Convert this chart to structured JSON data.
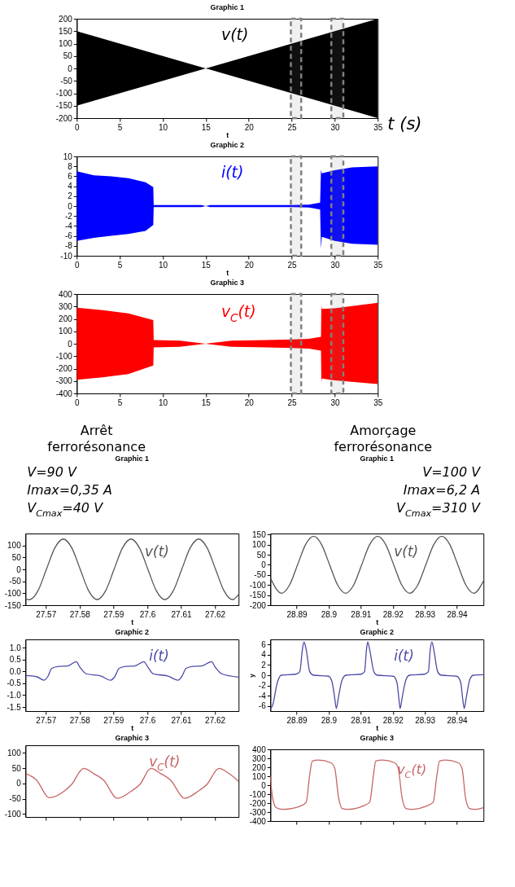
{
  "chart_data": [
    {
      "type": "line",
      "title": "Graphic 1",
      "xlabel": "t",
      "xlim": [
        0,
        35
      ],
      "xticks": [
        0,
        5,
        10,
        15,
        20,
        25,
        30,
        35
      ],
      "ylim": [
        -200,
        200
      ],
      "yticks": [
        -200,
        -150,
        -100,
        -50,
        0,
        50,
        100,
        150,
        200
      ],
      "series": [
        {
          "name": "v(t)",
          "color": "#000000",
          "x": [
            0,
            15,
            35
          ],
          "values": [
            null,
            null,
            null
          ],
          "lower": [
            -150,
            0,
            -200
          ],
          "upper": [
            150,
            0,
            200
          ]
        }
      ],
      "bands": [
        {
          "axis": "x",
          "from": 24.9,
          "to": 26.1,
          "color": "#808080"
        },
        {
          "axis": "x",
          "from": 29.6,
          "to": 31.0,
          "color": "#808080"
        }
      ],
      "annotations": [
        "t (s)"
      ]
    },
    {
      "type": "line",
      "title": "Graphic 2",
      "xlabel": "t",
      "xlim": [
        0,
        35
      ],
      "xticks": [
        0,
        5,
        10,
        15,
        20,
        25,
        30,
        35
      ],
      "ylim": [
        -10,
        10
      ],
      "yticks": [
        -10,
        -8,
        -6,
        -4,
        -2,
        0,
        2,
        4,
        6,
        8,
        10
      ],
      "series": [
        {
          "name": "i(t)",
          "color": "#0000ff",
          "x": [
            0,
            2,
            4,
            6,
            8,
            8.9,
            8.95,
            14.5,
            15,
            15.5,
            25,
            27,
            28.3,
            28.4,
            28.5,
            30,
            32,
            35
          ],
          "values": [
            null,
            null,
            null,
            null,
            null,
            null,
            null,
            null,
            null,
            null,
            null,
            null,
            null,
            null,
            null,
            null,
            null,
            null
          ],
          "upper": [
            7,
            6.2,
            6,
            5.6,
            4.8,
            3.8,
            0.2,
            0.2,
            0,
            0.2,
            0.2,
            0.3,
            0.7,
            7.3,
            6.6,
            7.2,
            7.8,
            8
          ],
          "lower": [
            -7,
            -6.4,
            -6,
            -5.6,
            -5,
            -3.8,
            -0.2,
            -0.2,
            0,
            -0.2,
            -0.2,
            -0.3,
            -0.7,
            -8.6,
            -6.2,
            -7,
            -7.6,
            -7.8
          ]
        }
      ],
      "bands": [
        {
          "axis": "x",
          "from": 24.9,
          "to": 26.1,
          "color": "#808080"
        },
        {
          "axis": "x",
          "from": 29.6,
          "to": 31.0,
          "color": "#808080"
        }
      ]
    },
    {
      "type": "line",
      "title": "Graphic 3",
      "xlim": [
        0,
        35
      ],
      "xticks": [
        0,
        5,
        10,
        15,
        20,
        25,
        30,
        35
      ],
      "ylim": [
        -400,
        400
      ],
      "yticks": [
        -400,
        -300,
        -200,
        -100,
        0,
        100,
        200,
        300,
        400
      ],
      "series": [
        {
          "name": "v$_{C}$(t)",
          "color": "#ff0000",
          "x": [
            0,
            3,
            6,
            8.9,
            8.95,
            12,
            15,
            18,
            22,
            25,
            27,
            28.4,
            28.45,
            28.5,
            30,
            35
          ],
          "values": [
            null,
            null,
            null,
            null,
            null,
            null,
            null,
            null,
            null,
            null,
            null,
            null,
            null,
            null,
            null,
            null
          ],
          "upper": [
            290,
            270,
            245,
            190,
            30,
            25,
            0,
            25,
            30,
            35,
            40,
            55,
            310,
            280,
            285,
            330
          ],
          "lower": [
            -290,
            -270,
            -245,
            -175,
            -30,
            -25,
            0,
            -25,
            -30,
            -35,
            -40,
            -55,
            -310,
            -280,
            -295,
            -325
          ]
        }
      ],
      "bands": [
        {
          "axis": "x",
          "from": 24.9,
          "to": 26.1,
          "color": "#808080"
        },
        {
          "axis": "x",
          "from": 29.6,
          "to": 31.0,
          "color": "#808080"
        }
      ],
      "annotations": [
        "Arrêt\nferrorésonance",
        "Amorçage\nferrorésonance"
      ]
    },
    {
      "type": "line",
      "title": "Graphic 1",
      "xlabel": "t",
      "xlim": [
        27.564,
        27.627
      ],
      "xticks": [
        27.57,
        27.58,
        27.59,
        27.6,
        27.61,
        27.62
      ],
      "ylim": [
        -150,
        150
      ],
      "yticks": [
        -150,
        -100,
        -50,
        0,
        50,
        100
      ],
      "series": [
        {
          "name": "v(t)",
          "color": "#555555",
          "x": [
            27.564,
            27.5652,
            27.5677,
            27.5702,
            27.5727,
            27.5752,
            27.5777,
            27.5802,
            27.5827,
            27.5852,
            27.5877,
            27.5902,
            27.5927,
            27.5952,
            27.5977,
            27.6002,
            27.6027,
            27.6052,
            27.6077,
            27.6102,
            27.6127,
            27.6152,
            27.6177,
            27.6202,
            27.6227,
            27.6252,
            27.627
          ],
          "values": [
            -124,
            -127,
            -90,
            0,
            90,
            127,
            90,
            0,
            -90,
            -127,
            -90,
            0,
            90,
            127,
            90,
            0,
            -90,
            -127,
            -90,
            0,
            90,
            127,
            90,
            0,
            -90,
            -127,
            -105
          ]
        }
      ],
      "annotations": [
        "V=90 V",
        "Imax=0,35 A",
        "V$_{Cmax}$=40 V"
      ]
    },
    {
      "type": "line",
      "title": "Graphic 1",
      "xlabel": "t",
      "xlim": [
        28.8818,
        28.9483
      ],
      "xticks": [
        28.89,
        28.9,
        28.91,
        28.92,
        28.93,
        28.94
      ],
      "ylim": [
        -200,
        155
      ],
      "yticks": [
        -200,
        -150,
        -100,
        -50,
        0,
        50,
        100,
        150
      ],
      "series": [
        {
          "name": "v(t)",
          "color": "#555555",
          "x": [
            28.8818,
            28.8853,
            28.8878,
            28.8903,
            28.8928,
            28.8953,
            28.8978,
            28.9003,
            28.9028,
            28.9053,
            28.9078,
            28.9103,
            28.9128,
            28.9153,
            28.9178,
            28.9203,
            28.9228,
            28.9253,
            28.9278,
            28.9303,
            28.9328,
            28.9353,
            28.9378,
            28.9403,
            28.9428,
            28.9453,
            28.9483
          ],
          "values": [
            -64,
            -141,
            -100,
            0,
            100,
            141,
            100,
            0,
            -100,
            -141,
            -100,
            0,
            100,
            141,
            100,
            0,
            -100,
            -141,
            -100,
            0,
            100,
            141,
            100,
            0,
            -100,
            -141,
            -80
          ]
        }
      ],
      "annotations": [
        "V=100 V",
        "Imax=6,2 A",
        "V$_{Cmax}$=310 V"
      ]
    },
    {
      "type": "line",
      "title": "Graphic 2",
      "xlabel": "t",
      "xlim": [
        27.564,
        27.627
      ],
      "xticks": [
        27.57,
        27.58,
        27.59,
        27.6,
        27.61,
        27.62
      ],
      "ylim": [
        -1.67,
        1.35
      ],
      "yticks": [
        {
          "value": -1.5,
          "label": "-1.5"
        },
        {
          "value": -1,
          "label": "-1.0"
        },
        {
          "value": -0.5,
          "label": "-0.5"
        },
        {
          "value": 0,
          "label": "0.0"
        },
        {
          "value": 0.5,
          "label": "0.5"
        },
        {
          "value": 1,
          "label": "1.0"
        }
      ],
      "series": [
        {
          "name": "i(t)",
          "color": "#4a4aa8",
          "x": [
            27.5642,
            27.5673,
            27.5695,
            27.5706,
            27.5718,
            27.5739,
            27.5765,
            27.579,
            27.5801,
            27.582,
            27.5864,
            27.5892,
            27.5904,
            27.5917,
            27.5937,
            27.5963,
            27.599,
            27.6002,
            27.6018,
            27.6062,
            27.6091,
            27.6102,
            27.6115,
            27.6135,
            27.6161,
            27.619,
            27.6201,
            27.622,
            27.627
          ],
          "values": [
            -0.17,
            -0.22,
            -0.37,
            -0.22,
            0.13,
            0.21,
            0.23,
            0.41,
            0.18,
            -0.1,
            -0.2,
            -0.37,
            -0.22,
            0.13,
            0.21,
            0.23,
            0.41,
            0.18,
            -0.1,
            -0.2,
            -0.37,
            -0.22,
            0.13,
            0.21,
            0.23,
            0.41,
            0.18,
            -0.1,
            -0.24
          ]
        }
      ]
    },
    {
      "type": "line",
      "title": "Graphic 2",
      "xlabel": "t",
      "ylabel": "y",
      "xlim": [
        28.8818,
        28.9483
      ],
      "xticks": [
        28.89,
        28.9,
        28.91,
        28.92,
        28.93,
        28.94
      ],
      "ylim": [
        -7,
        7
      ],
      "yticks": [
        -6,
        -4,
        -2,
        0,
        2,
        4,
        6
      ],
      "series": [
        {
          "name": "i(t)",
          "color": "#4a4aa8",
          "x": [
            28.8818,
            28.8825,
            28.884,
            28.8852,
            28.8898,
            28.891,
            28.8918,
            28.8923,
            28.893,
            28.8941,
            28.8953,
            28.9,
            28.9011,
            28.9019,
            28.9024,
            28.903,
            28.9042,
            28.9054,
            28.9101,
            28.9112,
            28.9118,
            28.9122,
            28.9128,
            28.9141,
            28.9151,
            28.9202,
            28.9213,
            28.9219,
            28.9223,
            28.9229,
            28.9241,
            28.9252,
            28.9299,
            28.9311,
            28.9317,
            28.9322,
            28.9328,
            28.934,
            28.9351,
            28.94,
            28.9412,
            28.9418,
            28.9423,
            28.9429,
            28.944,
            28.9451,
            28.9483
          ],
          "values": [
            -6.6,
            -5.9,
            -1.4,
            0,
            0.2,
            0.7,
            5,
            6.5,
            5,
            0.7,
            0,
            -0.2,
            -1.4,
            -4.5,
            -6.5,
            -4.5,
            -0.9,
            0,
            0.2,
            0.7,
            5,
            6.5,
            5,
            0.7,
            0,
            -0.2,
            -1.4,
            -4.5,
            -6.5,
            -4.5,
            -0.9,
            0,
            0.2,
            0.7,
            5,
            6.5,
            5,
            0.7,
            0,
            -0.2,
            -1.4,
            -4.5,
            -6.5,
            -4.5,
            -0.9,
            0,
            0.1
          ]
        }
      ]
    },
    {
      "type": "line",
      "title": "Graphic 3",
      "tick_labels": "y",
      "xlim": [
        27.564,
        27.627
      ],
      "xticks": [
        27.57,
        27.58,
        27.59,
        27.6,
        27.61,
        27.62
      ],
      "ylim": [
        -110,
        125
      ],
      "yticks": [
        -100,
        -50,
        0,
        50,
        100
      ],
      "series": [
        {
          "name": "v$_{C}$(t)",
          "color": "#c86464",
          "x": [
            27.5642,
            27.5673,
            27.571,
            27.5754,
            27.5776,
            27.5812,
            27.5842,
            27.5871,
            27.5911,
            27.5952,
            27.5978,
            27.6011,
            27.604,
            27.6069,
            27.611,
            27.615,
            27.6176,
            27.6212,
            27.6242,
            27.627
          ],
          "values": [
            32,
            11,
            -47,
            -26,
            -4,
            49,
            32,
            11,
            -49,
            -26,
            -4,
            49,
            32,
            11,
            -49,
            -26,
            -4,
            49,
            32,
            7
          ]
        }
      ]
    },
    {
      "type": "line",
      "title": "Graphic 3",
      "tick_labels": "y",
      "xlim": [
        28.8818,
        28.9483
      ],
      "xticks": [
        28.89,
        28.9,
        28.91,
        28.92,
        28.93,
        28.94
      ],
      "ylim": [
        -400,
        400
      ],
      "yticks": [
        -400,
        -300,
        -200,
        -100,
        0,
        100,
        200,
        300,
        400
      ],
      "series": [
        {
          "name": "v$_{C}$(t)",
          "color": "#c86464",
          "x": [
            28.8818,
            28.8825,
            28.8836,
            28.8856,
            28.8914,
            28.893,
            28.8941,
            28.8949,
            28.8968,
            28.9007,
            28.9019,
            28.9031,
            28.9042,
            28.9058,
            28.9108,
            28.9128,
            28.914,
            28.9147,
            28.9167,
            28.9206,
            28.9217,
            28.9229,
            28.9241,
            28.9256,
            28.9307,
            28.9326,
            28.9338,
            28.9346,
            28.9365,
            28.9404,
            28.9416,
            28.9427,
            28.9439,
            28.9454,
            28.9483
          ],
          "values": [
            100,
            -140,
            -250,
            -270,
            -230,
            -190,
            120,
            270,
            280,
            250,
            190,
            -140,
            -260,
            -270,
            -230,
            -190,
            120,
            270,
            280,
            250,
            190,
            -140,
            -260,
            -270,
            -230,
            -190,
            120,
            270,
            280,
            250,
            190,
            -140,
            -260,
            -270,
            -250
          ]
        }
      ]
    }
  ]
}
